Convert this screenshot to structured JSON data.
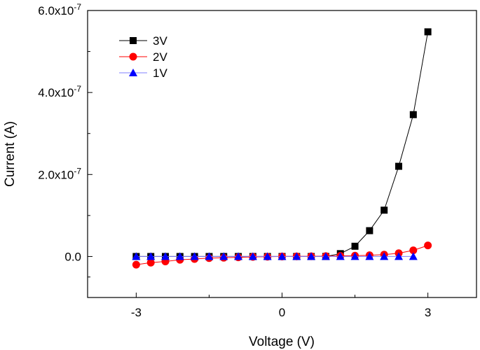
{
  "chart_data": {
    "type": "line",
    "xlabel": "Voltage (V)",
    "ylabel": "Current (A)",
    "xlim": [
      -4,
      4
    ],
    "ylim": [
      -1e-07,
      6e-07
    ],
    "xticks": [
      -3,
      0,
      3
    ],
    "xtick_labels": [
      "-3",
      "0",
      "3"
    ],
    "yticks": [
      0,
      2e-07,
      4e-07,
      6e-07
    ],
    "ytick_labels": [
      "0.0",
      "2.0x10-7",
      "4.0x10-7",
      "6.0x10-7"
    ],
    "grid": false,
    "legend_position": "top-left",
    "series": [
      {
        "name": "3V",
        "color": "#000000",
        "marker": "square",
        "x": [
          -3,
          -2.7,
          -2.4,
          -2.1,
          -1.8,
          -1.5,
          -1.2,
          -0.9,
          -0.6,
          -0.3,
          0,
          0.3,
          0.6,
          0.9,
          1.2,
          1.5,
          1.8,
          2.1,
          2.4,
          2.7,
          3.0
        ],
        "y": [
          0,
          0,
          0,
          0,
          0,
          0,
          0,
          0,
          0,
          0,
          0,
          0,
          0,
          1e-10,
          7e-09,
          2.5e-08,
          6.3e-08,
          1.13e-07,
          2.2e-07,
          3.46e-07,
          5.48e-07
        ]
      },
      {
        "name": "2V",
        "color": "#ff0000",
        "marker": "circle",
        "x": [
          -3,
          -2.7,
          -2.4,
          -2.1,
          -1.8,
          -1.5,
          -1.2,
          -0.9,
          -0.6,
          -0.3,
          0,
          0.3,
          0.6,
          0.9,
          1.2,
          1.5,
          1.8,
          2.1,
          2.4,
          2.7,
          3.0
        ],
        "y": [
          -2e-08,
          -1.5e-08,
          -1.2e-08,
          -8e-09,
          -6e-09,
          -4e-09,
          -3e-09,
          -2e-09,
          -1e-09,
          -5e-10,
          0,
          3e-10,
          5e-10,
          1e-09,
          1.5e-09,
          2e-09,
          3e-09,
          4.5e-09,
          8e-09,
          1.5e-08,
          2.7e-08
        ]
      },
      {
        "name": "1V",
        "color": "#0000ff",
        "line_color": "#8080ff",
        "marker": "triangle",
        "x": [
          -3,
          -2.7,
          -2.4,
          -2.1,
          -1.8,
          -1.5,
          -1.2,
          -0.9,
          -0.6,
          -0.3,
          0,
          0.3,
          0.6,
          0.9,
          1.2,
          1.5,
          1.8,
          2.1,
          2.4,
          2.7
        ],
        "y": [
          0,
          0,
          0,
          0,
          0,
          0,
          0,
          0,
          0,
          0,
          0,
          0,
          0,
          0,
          0,
          0,
          0,
          0,
          0,
          0
        ]
      }
    ]
  }
}
